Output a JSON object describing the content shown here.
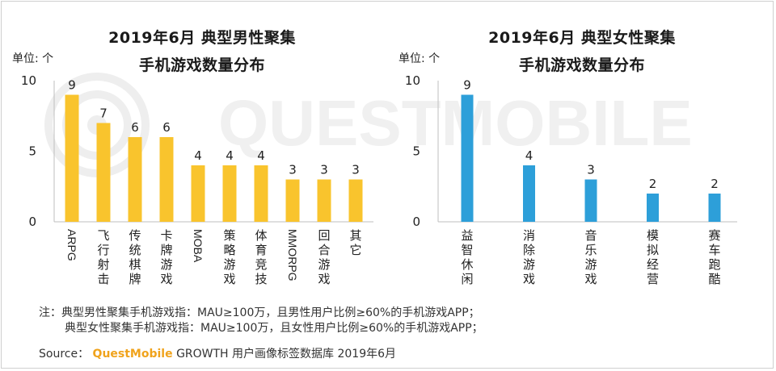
{
  "watermark": "QUESTMOBILE",
  "chart_data": [
    {
      "type": "bar",
      "title_line1": "2019年6月 典型男性聚集",
      "title_line2": "手机游戏数量分布",
      "unit_label": "单位: 个",
      "categories": [
        "ARPG",
        "飞行射击",
        "传统棋牌",
        "卡牌游戏",
        "MOBA",
        "策略游戏",
        "体育竞技",
        "MMORPG",
        "回合游戏",
        "其它"
      ],
      "values": [
        9,
        7,
        6,
        6,
        4,
        4,
        4,
        3,
        3,
        3
      ],
      "yticks": [
        0,
        5,
        10
      ],
      "ylim": [
        0,
        10
      ],
      "color": "#f9c42d"
    },
    {
      "type": "bar",
      "title_line1": "2019年6月 典型女性聚集",
      "title_line2": "手机游戏数量分布",
      "unit_label": "单位: 个",
      "categories": [
        "益智休闲",
        "消除游戏",
        "音乐游戏",
        "模拟经营",
        "赛车跑酷"
      ],
      "values": [
        9,
        4,
        3,
        2,
        2
      ],
      "yticks": [
        0,
        5,
        10
      ],
      "ylim": [
        0,
        10
      ],
      "color": "#2d9fd9"
    }
  ],
  "notes": {
    "line1": "注：典型男性聚集手机游戏指：MAU≥100万，且男性用户比例≥60%的手机游戏APP；",
    "line2": "典型女性聚集手机游戏指：MAU≥100万，且女性用户比例≥60%的手机游戏APP；"
  },
  "source": {
    "prefix": "Source：",
    "brand": "QuestMobile",
    "rest": "GROWTH 用户画像标签数据库 2019年6月"
  }
}
